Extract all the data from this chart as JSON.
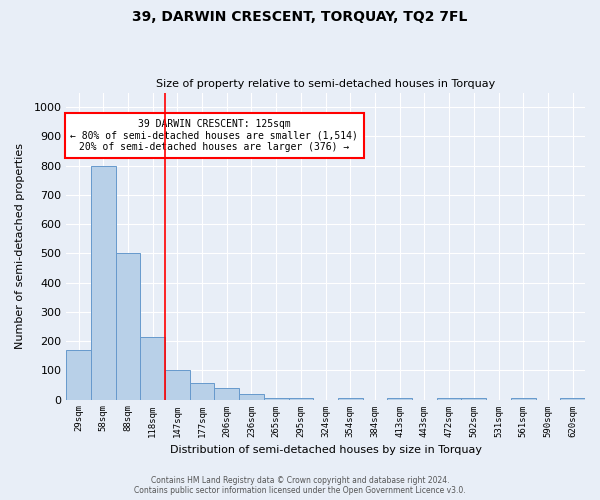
{
  "title": "39, DARWIN CRESCENT, TORQUAY, TQ2 7FL",
  "subtitle": "Size of property relative to semi-detached houses in Torquay",
  "xlabel": "Distribution of semi-detached houses by size in Torquay",
  "ylabel": "Number of semi-detached properties",
  "bin_labels": [
    "29sqm",
    "58sqm",
    "88sqm",
    "118sqm",
    "147sqm",
    "177sqm",
    "206sqm",
    "236sqm",
    "265sqm",
    "295sqm",
    "324sqm",
    "354sqm",
    "384sqm",
    "413sqm",
    "443sqm",
    "472sqm",
    "502sqm",
    "531sqm",
    "561sqm",
    "590sqm",
    "620sqm"
  ],
  "bar_values": [
    170,
    800,
    500,
    215,
    100,
    55,
    40,
    18,
    5,
    5,
    0,
    5,
    0,
    5,
    0,
    5,
    5,
    0,
    5,
    0,
    5
  ],
  "bar_color": "#b8d0e8",
  "bar_edge_color": "#6699cc",
  "property_line_x": 3.5,
  "property_line_color": "red",
  "annotation_title": "39 DARWIN CRESCENT: 125sqm",
  "annotation_line1": "← 80% of semi-detached houses are smaller (1,514)",
  "annotation_line2": "20% of semi-detached houses are larger (376) →",
  "annotation_box_color": "white",
  "annotation_box_edge": "red",
  "ylim": [
    0,
    1050
  ],
  "yticks": [
    0,
    100,
    200,
    300,
    400,
    500,
    600,
    700,
    800,
    900,
    1000
  ],
  "background_color": "#e8eef7",
  "plot_bg_color": "#e8eef7",
  "footer1": "Contains HM Land Registry data © Crown copyright and database right 2024.",
  "footer2": "Contains public sector information licensed under the Open Government Licence v3.0."
}
